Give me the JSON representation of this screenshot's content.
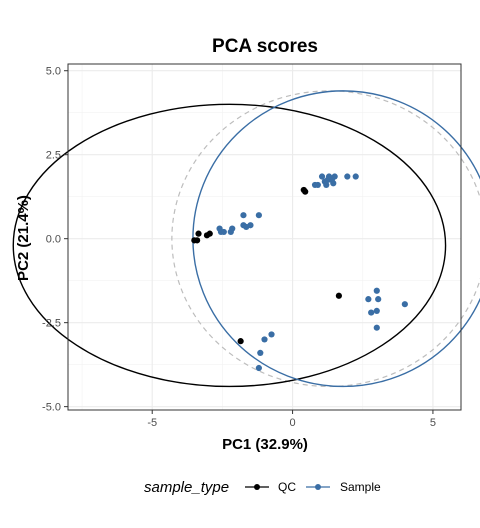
{
  "chart_data": {
    "type": "scatter",
    "title": "PCA scores",
    "xlabel": "PC1 (32.9%)",
    "ylabel": "PC2 (21.4%)",
    "xlim": [
      -8.0,
      6.0
    ],
    "ylim": [
      -5.1,
      5.2
    ],
    "x_ticks": [
      -5,
      0,
      5
    ],
    "x_tick_labels": [
      "-5",
      "0",
      "5"
    ],
    "y_ticks": [
      -5,
      -2.5,
      0,
      2.5,
      5
    ],
    "y_tick_labels": [
      "-5.0",
      "-2.5",
      "0.0",
      "2.5",
      "5.0"
    ],
    "grid": true,
    "legend": {
      "position": "bottom",
      "title": "sample_type",
      "entries": [
        "QC",
        "Sample"
      ]
    },
    "colors": {
      "QC": "#000000",
      "Sample": "#3a6ea5",
      "overall_ellipse": "#bdbdbd"
    },
    "series": [
      {
        "name": "QC",
        "points": [
          [
            0.4,
            1.45
          ],
          [
            0.45,
            1.4
          ],
          [
            -3.5,
            -0.05
          ],
          [
            -3.4,
            -0.05
          ],
          [
            -3.35,
            0.15
          ],
          [
            -3.05,
            0.1
          ],
          [
            -2.95,
            0.15
          ],
          [
            1.65,
            -1.7
          ],
          [
            -1.85,
            -3.05
          ]
        ],
        "ellipse": {
          "cx": -2.25,
          "cy": -0.2,
          "rx": 7.7,
          "ry": 4.2
        }
      },
      {
        "name": "Sample",
        "points": [
          [
            0.8,
            1.6
          ],
          [
            0.9,
            1.6
          ],
          [
            1.05,
            1.85
          ],
          [
            1.15,
            1.7
          ],
          [
            1.2,
            1.6
          ],
          [
            1.25,
            1.75
          ],
          [
            1.4,
            1.75
          ],
          [
            1.45,
            1.65
          ],
          [
            1.5,
            1.85
          ],
          [
            1.95,
            1.85
          ],
          [
            2.25,
            1.85
          ],
          [
            1.3,
            1.85
          ],
          [
            -1.75,
            0.7
          ],
          [
            -1.2,
            0.7
          ],
          [
            -1.75,
            0.4
          ],
          [
            -1.65,
            0.35
          ],
          [
            -1.5,
            0.4
          ],
          [
            -2.6,
            0.3
          ],
          [
            -2.45,
            0.2
          ],
          [
            -2.2,
            0.2
          ],
          [
            -2.15,
            0.3
          ],
          [
            -2.55,
            0.2
          ],
          [
            -0.75,
            -2.85
          ],
          [
            -1.0,
            -3.0
          ],
          [
            -1.15,
            -3.4
          ],
          [
            -1.2,
            -3.85
          ],
          [
            2.7,
            -1.8
          ],
          [
            3.0,
            -1.55
          ],
          [
            3.05,
            -1.8
          ],
          [
            2.8,
            -2.2
          ],
          [
            3.0,
            -2.15
          ],
          [
            3.0,
            -2.65
          ],
          [
            4.0,
            -1.95
          ]
        ],
        "ellipse": {
          "cx": 1.8,
          "cy": 0.0,
          "rx": 5.35,
          "ry": 4.4
        }
      }
    ],
    "overall_ellipse": {
      "cx": 1.3,
      "cy": 0.0,
      "rx": 5.6,
      "ry": 4.4
    }
  }
}
